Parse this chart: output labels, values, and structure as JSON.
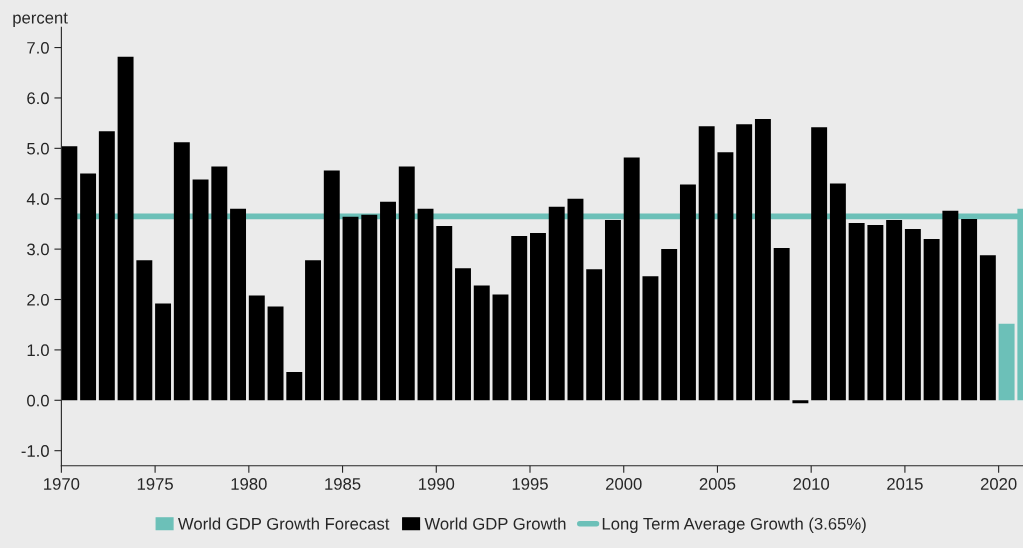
{
  "chart_data": {
    "type": "bar",
    "ylabel": "percent",
    "x": [
      1970,
      1971,
      1972,
      1973,
      1974,
      1975,
      1976,
      1977,
      1978,
      1979,
      1980,
      1981,
      1982,
      1983,
      1984,
      1985,
      1986,
      1987,
      1988,
      1989,
      1990,
      1991,
      1992,
      1993,
      1994,
      1995,
      1996,
      1997,
      1998,
      1999,
      2000,
      2001,
      2002,
      2003,
      2004,
      2005,
      2006,
      2007,
      2008,
      2009,
      2010,
      2011,
      2012,
      2013,
      2014,
      2015,
      2016,
      2017,
      2018,
      2019,
      2020,
      2021
    ],
    "series": [
      {
        "name": "World GDP Growth Forecast",
        "color": "#6cc0b8",
        "values": [
          null,
          null,
          null,
          null,
          null,
          null,
          null,
          null,
          null,
          null,
          null,
          null,
          null,
          null,
          null,
          null,
          null,
          null,
          null,
          null,
          null,
          null,
          null,
          null,
          null,
          null,
          null,
          null,
          null,
          null,
          null,
          null,
          null,
          null,
          null,
          null,
          null,
          null,
          null,
          null,
          null,
          null,
          null,
          null,
          null,
          null,
          null,
          null,
          null,
          null,
          1.52,
          3.8
        ]
      },
      {
        "name": "World GDP Growth",
        "color": "#000000",
        "values": [
          5.04,
          4.5,
          5.34,
          6.82,
          2.78,
          1.92,
          5.12,
          4.38,
          4.64,
          3.8,
          2.08,
          1.86,
          0.56,
          2.78,
          4.56,
          3.64,
          3.68,
          3.94,
          4.64,
          3.8,
          3.46,
          2.62,
          2.28,
          2.1,
          3.26,
          3.32,
          3.84,
          4.0,
          2.6,
          3.58,
          4.82,
          2.46,
          3.0,
          4.28,
          5.44,
          4.92,
          5.48,
          5.58,
          3.02,
          -0.06,
          5.42,
          4.3,
          3.52,
          3.48,
          3.58,
          3.4,
          3.2,
          3.76,
          3.6,
          2.88,
          null,
          null
        ]
      }
    ],
    "ref_lines": [
      {
        "axis": "y",
        "value": 3.65,
        "label": "Long Term Average Growth (3.65%)",
        "color": "#6cc0b8"
      }
    ],
    "xlim": [
      1970,
      2021.3
    ],
    "xticks": [
      1970,
      1975,
      1980,
      1985,
      1990,
      1995,
      2000,
      2005,
      2010,
      2015,
      2020
    ],
    "ylim": [
      -1.3,
      7.4
    ],
    "yticks": [
      {
        "value": -1,
        "label": "-1.0"
      },
      {
        "value": 0,
        "label": "0.0"
      },
      {
        "value": 1,
        "label": "1.0"
      },
      {
        "value": 2,
        "label": "2.0"
      },
      {
        "value": 3,
        "label": "3.0"
      },
      {
        "value": 4,
        "label": "4.0"
      },
      {
        "value": 5,
        "label": "5.0"
      },
      {
        "value": 6,
        "label": "6.0"
      },
      {
        "value": 7,
        "label": "7.0"
      }
    ],
    "grid": false,
    "legend": "bottom"
  }
}
